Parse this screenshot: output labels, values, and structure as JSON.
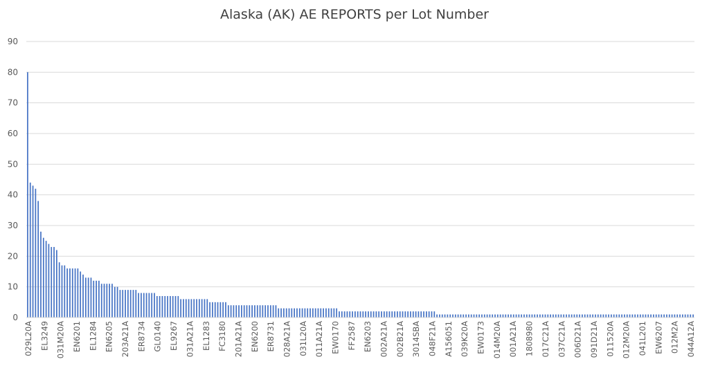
{
  "chart_data": {
    "type": "bar",
    "title": "Alaska (AK) AE REPORTS per Lot Number",
    "xlabel": "",
    "ylabel": "",
    "ylim": [
      0,
      90
    ],
    "yticks": [
      0,
      10,
      20,
      30,
      40,
      50,
      60,
      70,
      80,
      90
    ],
    "grid": true,
    "legend": "none",
    "bar_color": "#4472C4",
    "category_labels": [
      "029L20A",
      "EL3249",
      "031M20A",
      "EN6201",
      "EL1284",
      "EN6205",
      "203A21A",
      "ER8734",
      "GL0140",
      "EL9267",
      "031A21A",
      "EL1283",
      "FC3180",
      "201A21A",
      "EN6200",
      "ER8731",
      "028A21A",
      "031L20A",
      "011A21A",
      "EW0170",
      "FF2587",
      "EN6203",
      "002A21A",
      "002B21A",
      "3014SBA",
      "048F21A",
      "A156051",
      "039K20A",
      "EW0173",
      "014M20A",
      "001A21A",
      "1808980",
      "017C21A",
      "037C21A",
      "006D21A",
      "091D21A",
      "011520A",
      "012M20A",
      "041L201",
      "EW6207",
      "012M2A",
      "044A12A"
    ],
    "values": [
      80,
      44,
      43,
      42,
      38,
      28,
      26,
      25,
      24,
      23,
      23,
      22,
      18,
      17,
      17,
      16,
      16,
      16,
      16,
      16,
      15,
      14,
      13,
      13,
      13,
      12,
      12,
      12,
      11,
      11,
      11,
      11,
      11,
      10,
      10,
      9,
      9,
      9,
      9,
      9,
      9,
      9,
      8,
      8,
      8,
      8,
      8,
      8,
      8,
      7,
      7,
      7,
      7,
      7,
      7,
      7,
      7,
      7,
      6,
      6,
      6,
      6,
      6,
      6,
      6,
      6,
      6,
      6,
      6,
      5,
      5,
      5,
      5,
      5,
      5,
      5,
      4,
      4,
      4,
      4,
      4,
      4,
      4,
      4,
      4,
      4,
      4,
      4,
      4,
      4,
      4,
      4,
      4,
      4,
      4,
      3,
      3,
      3,
      3,
      3,
      3,
      3,
      3,
      3,
      3,
      3,
      3,
      3,
      3,
      3,
      3,
      3,
      3,
      3,
      3,
      3,
      3,
      3,
      2,
      2,
      2,
      2,
      2,
      2,
      2,
      2,
      2,
      2,
      2,
      2,
      2,
      2,
      2,
      2,
      2,
      2,
      2,
      2,
      2,
      2,
      2,
      2,
      2,
      2,
      2,
      2,
      2,
      2,
      2,
      2,
      2,
      2,
      2,
      2,
      2,
      1,
      1,
      1,
      1,
      1,
      1,
      1,
      1,
      1,
      1,
      1,
      1,
      1,
      1,
      1,
      1,
      1,
      1,
      1,
      1,
      1,
      1,
      1,
      1,
      1,
      1,
      1,
      1,
      1,
      1,
      1,
      1,
      1,
      1,
      1,
      1,
      1,
      1,
      1,
      1,
      1,
      1,
      1,
      1,
      1,
      1,
      1,
      1,
      1,
      1,
      1,
      1,
      1,
      1,
      1,
      1,
      1,
      1,
      1,
      1,
      1,
      1,
      1,
      1,
      1,
      1,
      1,
      1,
      1,
      1,
      1,
      1,
      1,
      1,
      1,
      1,
      1,
      1,
      1,
      1,
      1,
      1,
      1,
      1,
      1,
      1,
      1,
      1,
      1,
      1,
      1,
      1,
      1,
      1,
      1,
      1,
      1,
      1
    ]
  }
}
